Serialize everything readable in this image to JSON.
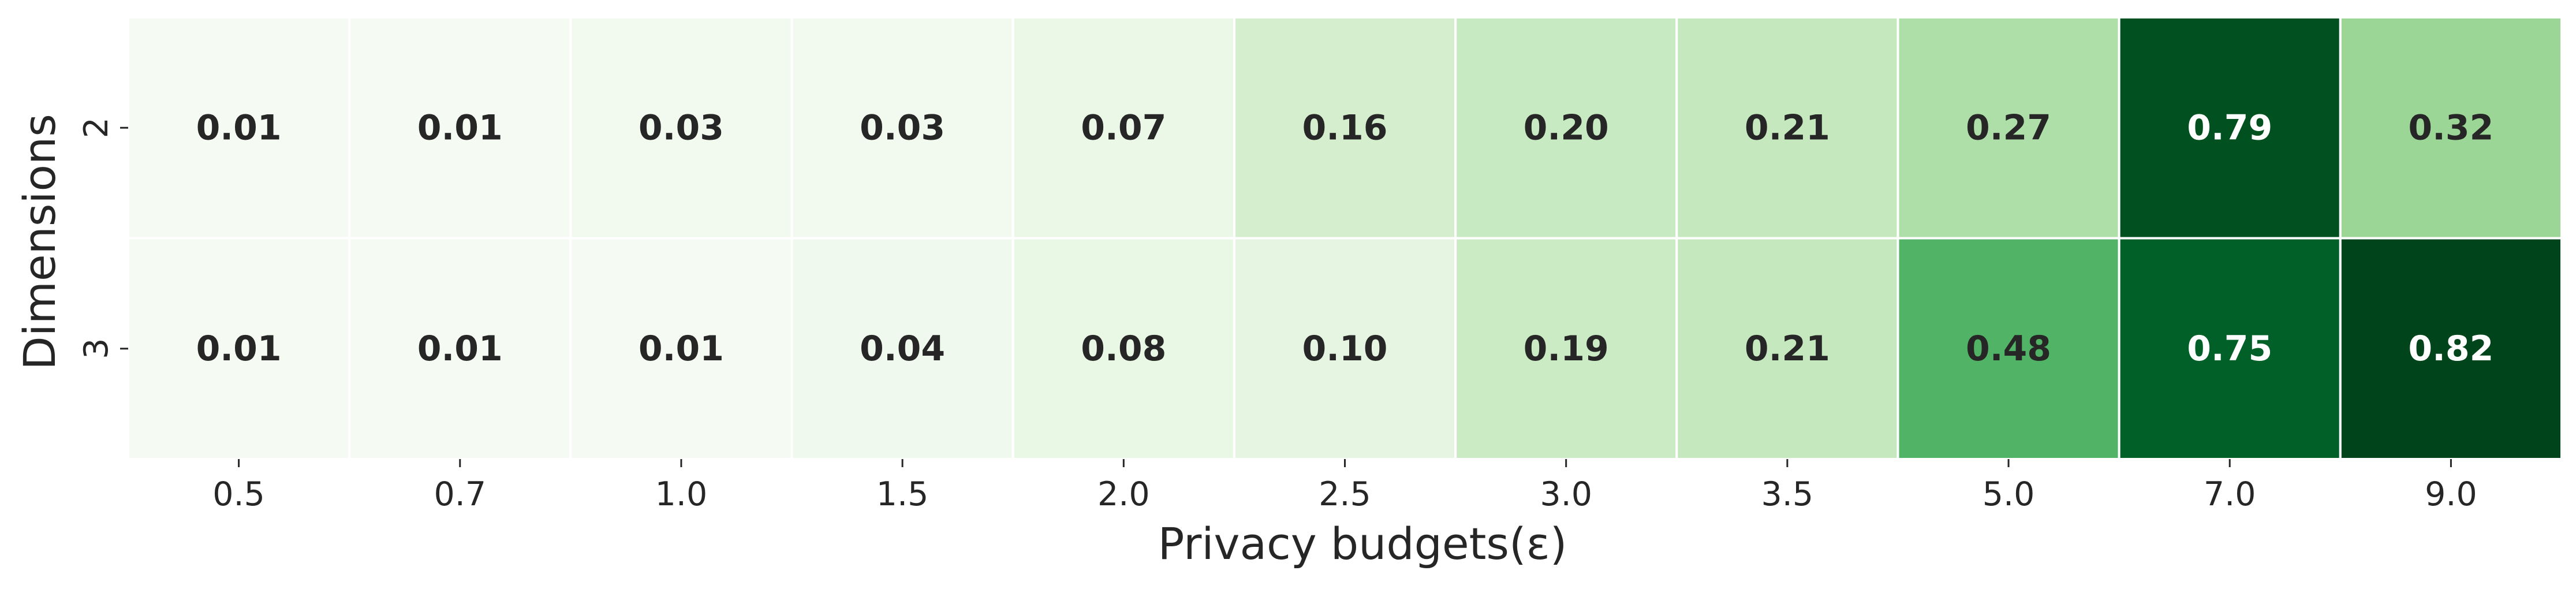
{
  "chart_data": {
    "type": "heatmap",
    "xlabel": "Privacy budgets(ε)",
    "ylabel": "Dimensions",
    "x_categories": [
      "0.5",
      "0.7",
      "1.0",
      "1.5",
      "2.0",
      "2.5",
      "3.0",
      "3.5",
      "5.0",
      "7.0",
      "9.0"
    ],
    "y_categories": [
      "2",
      "3"
    ],
    "values": [
      [
        0.01,
        0.01,
        0.03,
        0.03,
        0.07,
        0.16,
        0.2,
        0.21,
        0.27,
        0.79,
        0.32
      ],
      [
        0.01,
        0.01,
        0.01,
        0.04,
        0.08,
        0.1,
        0.19,
        0.21,
        0.48,
        0.75,
        0.82
      ]
    ],
    "value_labels": [
      [
        "0.01",
        "0.01",
        "0.03",
        "0.03",
        "0.07",
        "0.16",
        "0.20",
        "0.21",
        "0.27",
        "0.79",
        "0.32"
      ],
      [
        "0.01",
        "0.01",
        "0.01",
        "0.04",
        "0.08",
        "0.10",
        "0.19",
        "0.21",
        "0.48",
        "0.75",
        "0.82"
      ]
    ],
    "colormap": "Greens",
    "colormap_range": [
      0.0,
      0.82
    ],
    "grid": false,
    "legend": "none"
  }
}
